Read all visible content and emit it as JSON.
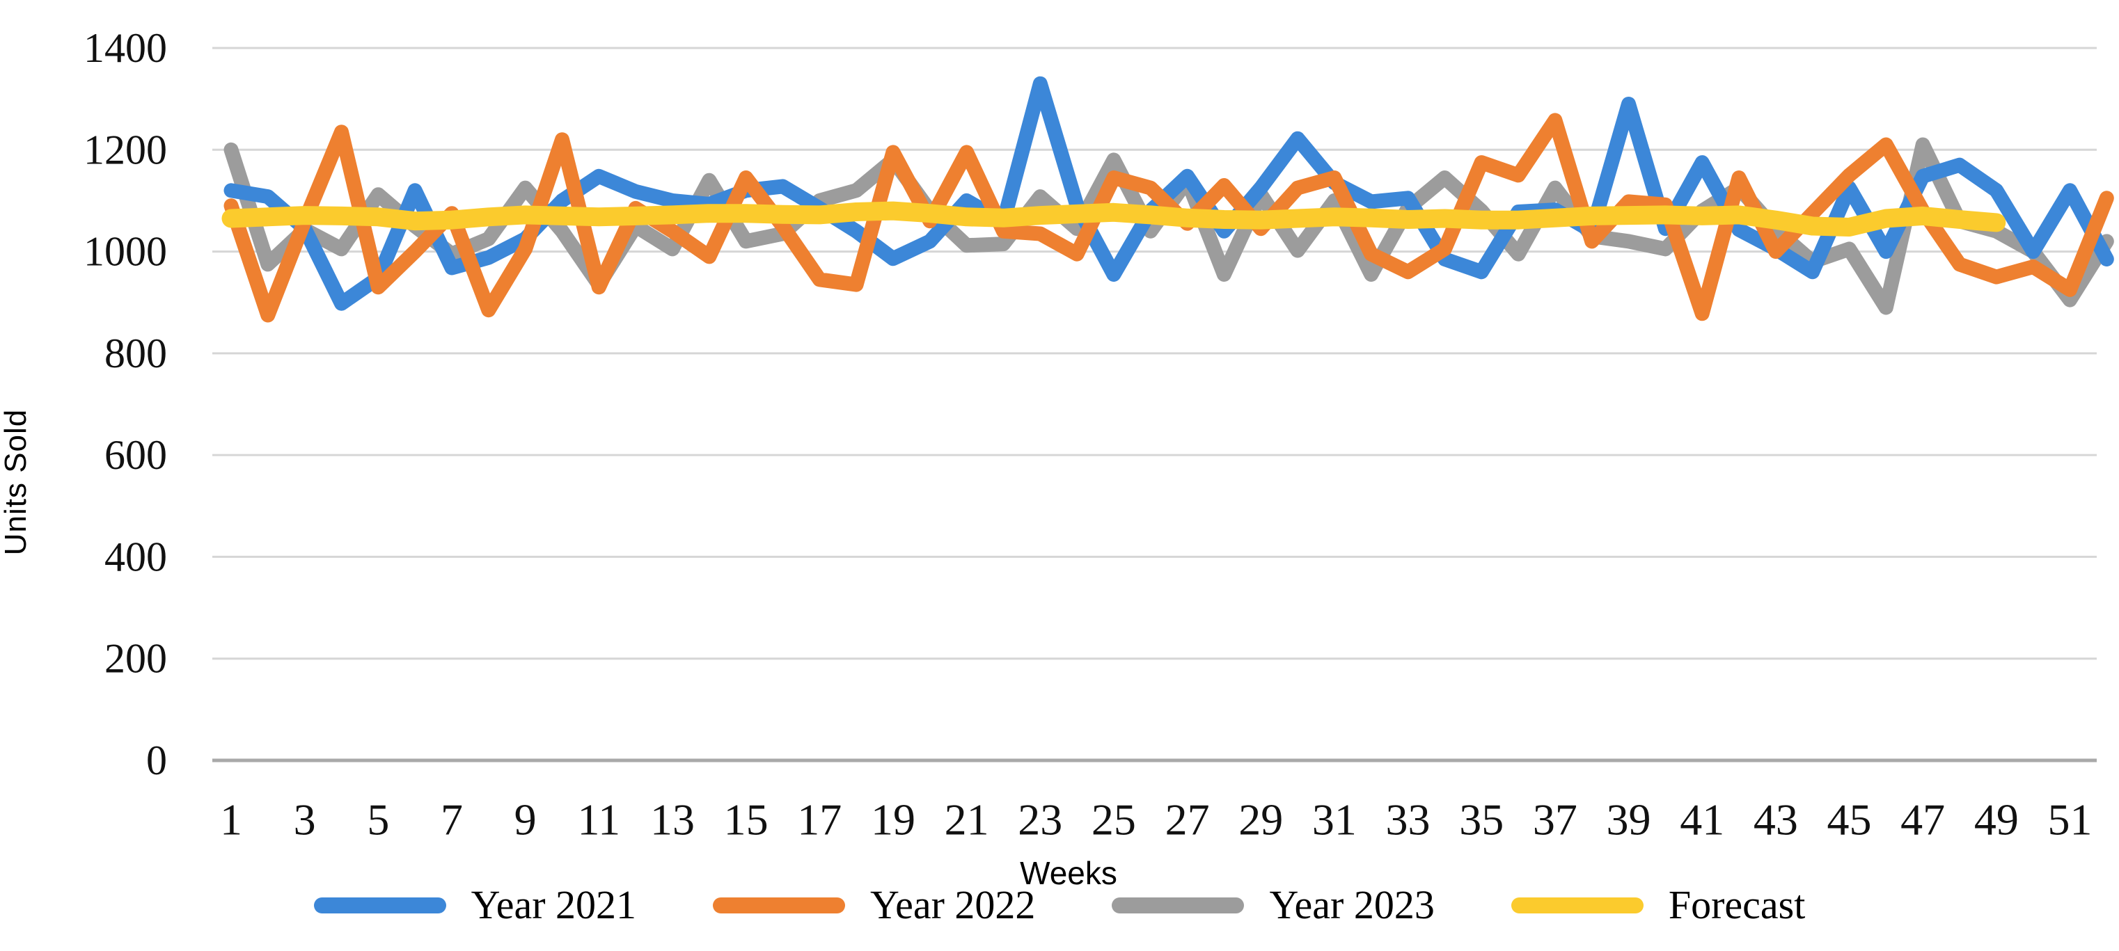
{
  "chart_data": {
    "type": "line",
    "title": "",
    "xlabel": "Weeks",
    "ylabel": "Units Sold",
    "x_unit": "week",
    "x_range": [
      1,
      52
    ],
    "x_tick_labels": [
      "1",
      "3",
      "5",
      "7",
      "9",
      "11",
      "13",
      "15",
      "17",
      "19",
      "21",
      "23",
      "25",
      "27",
      "29",
      "31",
      "33",
      "35",
      "37",
      "39",
      "41",
      "43",
      "45",
      "47",
      "49",
      "51"
    ],
    "y_tick_labels": [
      "0",
      "200",
      "400",
      "600",
      "800",
      "1000",
      "1200",
      "1400"
    ],
    "ylim": [
      0,
      1400
    ],
    "y_tick_step": 200,
    "grid": true,
    "legend_position": "bottom",
    "colors": {
      "gridline": "#d6d6d6",
      "baseline": "#a9a9a9",
      "tick_text": "#111111"
    },
    "series": [
      {
        "name": "Year 2021",
        "color": "#3c87d8",
        "values": [
          1120,
          1108,
          1045,
          898,
          948,
          1120,
          968,
          988,
          1025,
          1100,
          1148,
          1118,
          1100,
          1093,
          1120,
          1128,
          1085,
          1040,
          986,
          1020,
          1100,
          1058,
          1330,
          1090,
          955,
          1080,
          1148,
          1040,
          1125,
          1222,
          1135,
          1098,
          1105,
          985,
          960,
          1078,
          1082,
          1040,
          1290,
          1045,
          1175,
          1043,
          1005,
          960,
          1125,
          1000,
          1148,
          1170,
          1120,
          1000,
          1120,
          985
        ]
      },
      {
        "name": "Year 2022",
        "color": "#ee8030",
        "values": [
          1090,
          875,
          1060,
          1235,
          930,
          1000,
          1075,
          885,
          1005,
          1220,
          930,
          1085,
          1040,
          990,
          1145,
          1050,
          945,
          935,
          1195,
          1060,
          1195,
          1040,
          1035,
          995,
          1145,
          1125,
          1055,
          1130,
          1045,
          1125,
          1145,
          995,
          960,
          1005,
          1175,
          1150,
          1258,
          1020,
          1098,
          1092,
          878,
          1145,
          1000,
          1075,
          1150,
          1210,
          1080,
          975,
          950,
          970,
          925,
          1105
        ]
      },
      {
        "name": "Year 2023",
        "color": "#9c9c9c",
        "values": [
          1200,
          975,
          1043,
          1005,
          1112,
          1050,
          995,
          1025,
          1125,
          1040,
          935,
          1050,
          1005,
          1140,
          1020,
          1035,
          1100,
          1120,
          1180,
          1080,
          1012,
          1015,
          1108,
          1045,
          1180,
          1040,
          1140,
          955,
          1112,
          1002,
          1100,
          955,
          1085,
          1145,
          1080,
          995,
          1125,
          1030,
          1020,
          1005,
          1080,
          1125,
          1043,
          980,
          1005,
          890,
          1210,
          1060,
          1040,
          1000,
          905,
          1020
        ]
      },
      {
        "name": "Forecast",
        "color": "#fbcb2d",
        "values": [
          1065,
          1068,
          1071,
          1070,
          1068,
          1060,
          1062,
          1068,
          1072,
          1070,
          1068,
          1070,
          1072,
          1075,
          1075,
          1073,
          1072,
          1078,
          1080,
          1075,
          1068,
          1066,
          1071,
          1074,
          1077,
          1072,
          1066,
          1063,
          1062,
          1065,
          1068,
          1066,
          1063,
          1065,
          1062,
          1062,
          1066,
          1070,
          1071,
          1072,
          1070,
          1072,
          1062,
          1050,
          1048,
          1065,
          1070,
          1063,
          1057
        ]
      }
    ]
  }
}
